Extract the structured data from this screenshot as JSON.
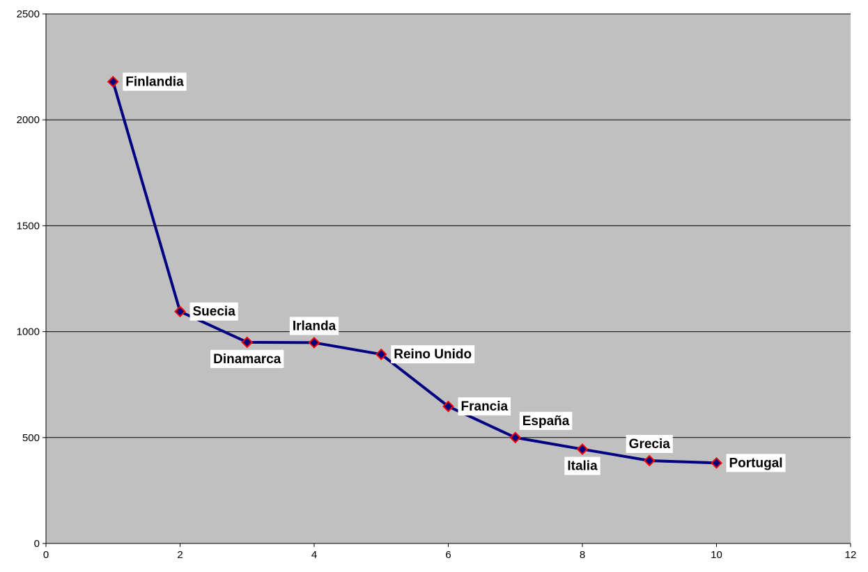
{
  "chart_data": {
    "type": "line",
    "title": "",
    "xlabel": "",
    "ylabel": "",
    "xlim": [
      0,
      12
    ],
    "ylim": [
      0,
      2500
    ],
    "x_ticks": [
      0,
      2,
      4,
      6,
      8,
      10,
      12
    ],
    "y_ticks": [
      0,
      500,
      1000,
      1500,
      2000,
      2500
    ],
    "grid": "horizontal",
    "legend": "none",
    "colors": {
      "plot_background": "#c0c0c0",
      "line": "#000080",
      "marker_fill": "#000080",
      "marker_edge": "#ff0000",
      "gridline": "#000000",
      "label_background": "#ffffff"
    },
    "series": [
      {
        "points": [
          {
            "x": 1,
            "y": 2180,
            "label": "Finlandia",
            "label_position": "right"
          },
          {
            "x": 2,
            "y": 1095,
            "label": "Suecia",
            "label_position": "right"
          },
          {
            "x": 3,
            "y": 950,
            "label": "Dinamarca",
            "label_position": "below"
          },
          {
            "x": 4,
            "y": 948,
            "label": "Irlanda",
            "label_position": "above"
          },
          {
            "x": 5,
            "y": 893,
            "label": "Reino Unido",
            "label_position": "right"
          },
          {
            "x": 6,
            "y": 647,
            "label": "Francia",
            "label_position": "right"
          },
          {
            "x": 7,
            "y": 500,
            "label": "España",
            "label_position": "above-right"
          },
          {
            "x": 8,
            "y": 445,
            "label": "Italia",
            "label_position": "below"
          },
          {
            "x": 9,
            "y": 391,
            "label": "Grecia",
            "label_position": "above"
          },
          {
            "x": 10,
            "y": 380,
            "label": "Portugal",
            "label_position": "right"
          }
        ]
      }
    ]
  }
}
